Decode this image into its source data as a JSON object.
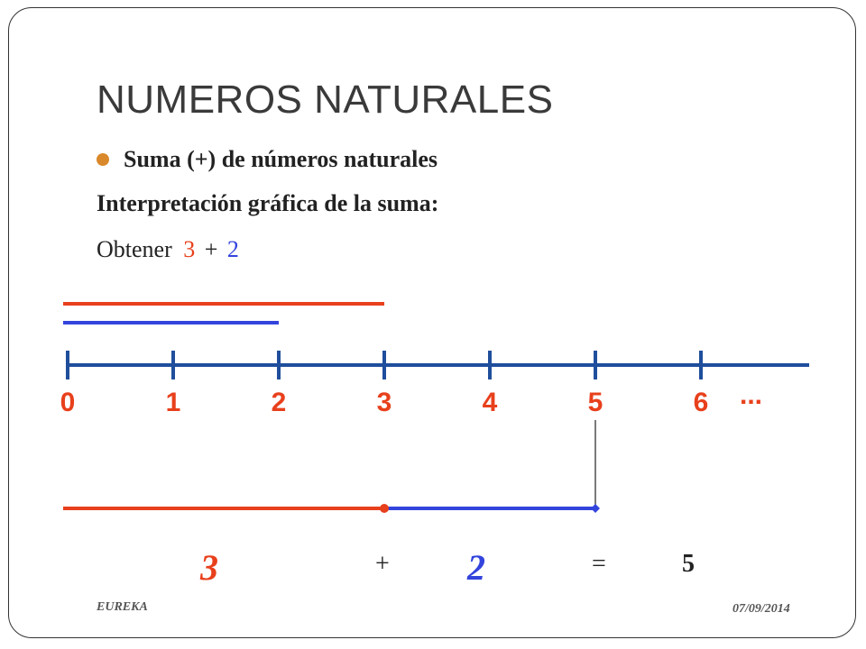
{
  "title": "NUMEROS NATURALES",
  "bullet": {
    "text": "Suma (+) de números naturales",
    "color": "#d9892b"
  },
  "line2": "Interpretación gráfica de la suma:",
  "line3": {
    "prefix": "Obtener",
    "a": "3",
    "op": "+",
    "b": "2"
  },
  "colors": {
    "red": "#e8401c",
    "blue": "#3344dd",
    "axis": "#1f4e9c"
  },
  "number_line": {
    "ticks": [
      "0",
      "1",
      "2",
      "3",
      "4",
      "5",
      "6"
    ],
    "ellipsis": "...",
    "segment_a": 3,
    "segment_b": 2
  },
  "result": {
    "a": "3",
    "plus": "+",
    "b": "2",
    "equals": "=",
    "sum": "5"
  },
  "footer": {
    "left": "EUREKA",
    "right": "07/09/2014"
  }
}
